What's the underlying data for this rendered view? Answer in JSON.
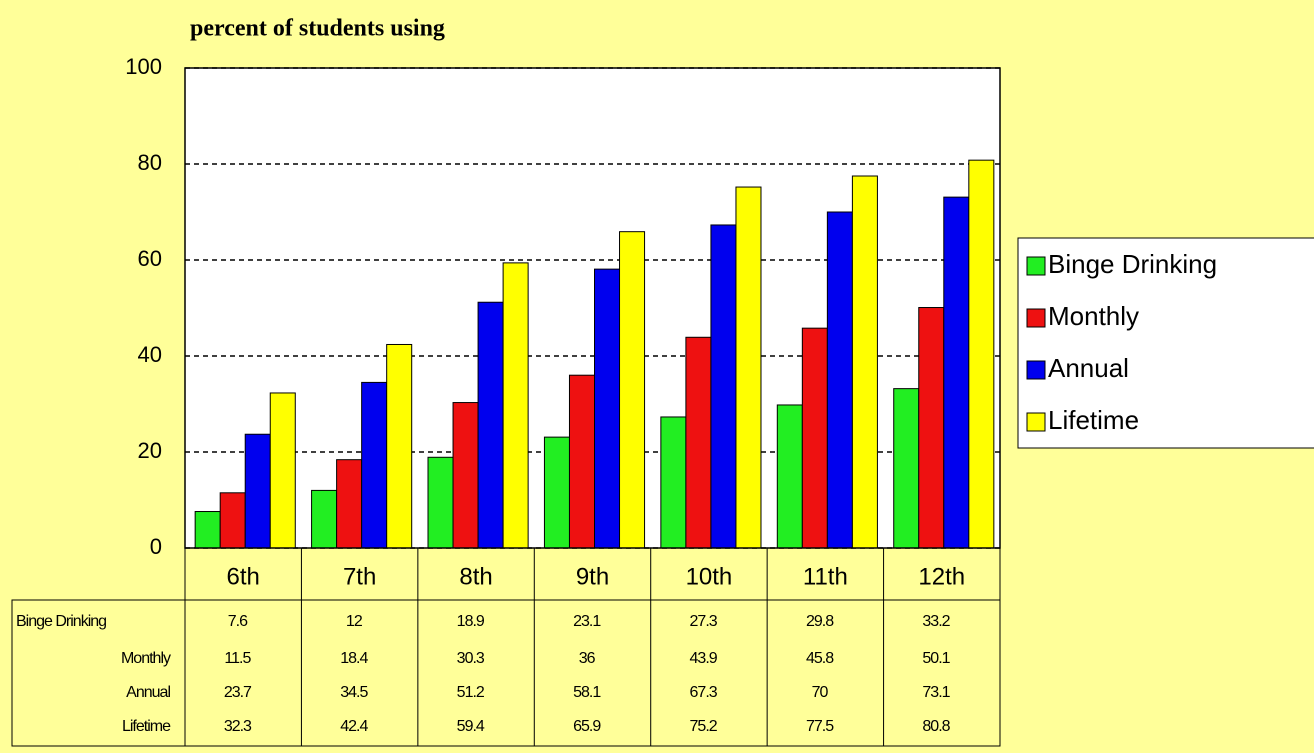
{
  "chart_data": {
    "type": "bar",
    "title": "percent of students using",
    "categories": [
      "6th",
      "7th",
      "8th",
      "9th",
      "10th",
      "11th",
      "12th"
    ],
    "series": [
      {
        "name": "Binge Drinking",
        "color": "#22ee22",
        "values": [
          7.6,
          12,
          18.9,
          23.1,
          27.3,
          29.8,
          33.2
        ]
      },
      {
        "name": "Monthly",
        "color": "#ee1111",
        "values": [
          11.5,
          18.4,
          30.3,
          36,
          43.9,
          45.8,
          50.1
        ]
      },
      {
        "name": "Annual",
        "color": "#0000ee",
        "values": [
          23.7,
          34.5,
          51.2,
          58.1,
          67.3,
          70,
          73.1
        ]
      },
      {
        "name": "Lifetime",
        "color": "#ffff00",
        "values": [
          32.3,
          42.4,
          59.4,
          65.9,
          75.2,
          77.5,
          80.8
        ]
      }
    ],
    "ylim": [
      0,
      100
    ],
    "yticks": [
      0,
      20,
      40,
      60,
      80,
      100
    ],
    "grid": true,
    "legend": "right"
  }
}
